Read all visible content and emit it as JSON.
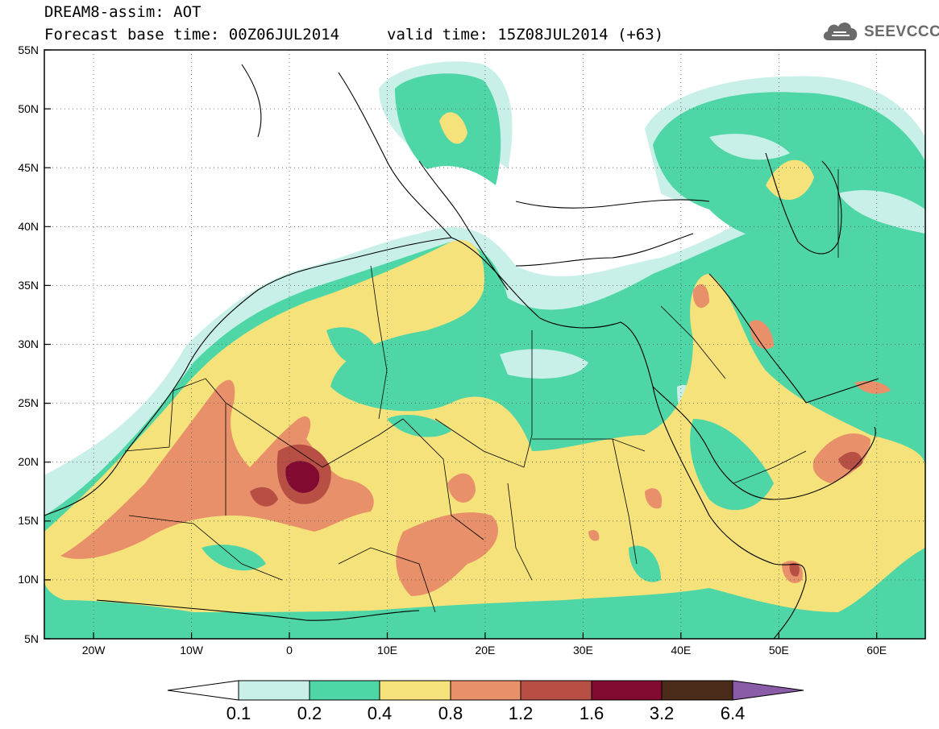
{
  "header": {
    "title": "DREAM8-assim: AOT",
    "base_time": "Forecast base time: 00Z06JUL2014",
    "valid_time": "valid time: 15Z08JUL2014 (+63)"
  },
  "logo": {
    "text": "SEEVCCC",
    "icon": "cloud-icon"
  },
  "map": {
    "lat_labels": [
      "55N",
      "50N",
      "45N",
      "40N",
      "35N",
      "30N",
      "25N",
      "20N",
      "15N",
      "10N",
      "5N"
    ],
    "lon_labels": [
      "20W",
      "10W",
      "0",
      "10E",
      "20E",
      "30E",
      "40E",
      "50E",
      "60E"
    ],
    "lon_range": [
      -25,
      65
    ],
    "lat_range": [
      5,
      55
    ],
    "gridlines": "dotted"
  },
  "colorbar": {
    "labels": [
      "0.1",
      "0.2",
      "0.4",
      "0.8",
      "1.2",
      "1.6",
      "3.2",
      "6.4"
    ],
    "colors": [
      "#ffffff",
      "#c8f0e8",
      "#4fd6a6",
      "#f5e27a",
      "#e8906a",
      "#b84f44",
      "#820a30",
      "#4a2a18",
      "#8a5ca8"
    ]
  },
  "chart_data": {
    "type": "heatmap",
    "title": "DREAM8-assim: AOT",
    "variable": "AOT",
    "levels": [
      0.1,
      0.2,
      0.4,
      0.8,
      1.2,
      1.6,
      3.2,
      6.4
    ],
    "xlim": [
      -25,
      65
    ],
    "ylim": [
      5,
      55
    ],
    "x_ticks": [
      "20W",
      "10W",
      "0",
      "10E",
      "20E",
      "30E",
      "40E",
      "50E",
      "60E"
    ],
    "y_ticks": [
      "5N",
      "10N",
      "15N",
      "20N",
      "25N",
      "30N",
      "35N",
      "40N",
      "45N",
      "50N",
      "55N"
    ],
    "max_region": {
      "lon": 1,
      "lat": 19,
      "level": "1.6-3.2"
    }
  }
}
